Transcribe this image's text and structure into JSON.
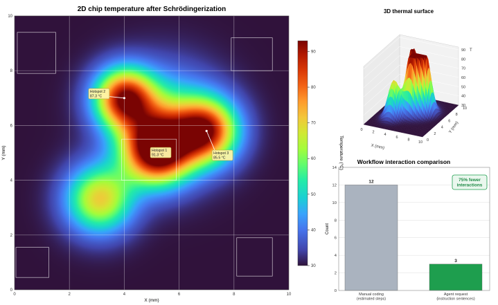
{
  "heatmap": {
    "title": "2D chip temperature after Schrödingerization",
    "xlabel": "X (mm)",
    "ylabel": "Y (mm)",
    "xlim": [
      0,
      10
    ],
    "ylim": [
      0,
      10
    ],
    "ticks": [
      "0",
      "2",
      "4",
      "6",
      "8",
      "10"
    ],
    "colorbar": {
      "label": "Temperature (°C)",
      "range": [
        30,
        93
      ],
      "ticks": [
        "30",
        "40",
        "50",
        "60",
        "70",
        "80",
        "90"
      ]
    },
    "hotspots": [
      {
        "name": "Hotspot 1",
        "x": 5.2,
        "y": 5.1,
        "value": "91.3 °C",
        "lx": 4.95,
        "ly": 5.2,
        "dir": "right"
      },
      {
        "name": "Hotspot 2",
        "x": 4.0,
        "y": 7.0,
        "value": "87.3 °C",
        "lx": 2.7,
        "ly": 7.35,
        "dir": "left"
      },
      {
        "name": "Hotspot 3",
        "x": 7.0,
        "y": 5.8,
        "value": "85.5 °C",
        "lx": 7.2,
        "ly": 5.1,
        "dir": "right"
      }
    ],
    "sources": [
      {
        "x": 5.2,
        "y": 5.1,
        "amp": 61,
        "sigma": 0.85
      },
      {
        "x": 4.0,
        "y": 7.0,
        "amp": 55,
        "sigma": 0.75
      },
      {
        "x": 7.0,
        "y": 5.8,
        "amp": 52,
        "sigma": 0.8
      },
      {
        "x": 3.1,
        "y": 3.3,
        "amp": 40,
        "sigma": 0.85
      },
      {
        "x": 5.5,
        "y": 6.1,
        "amp": 26,
        "sigma": 1.3
      }
    ],
    "boxes": [
      {
        "x0": 0.1,
        "y0": 7.9,
        "x1": 1.5,
        "y1": 9.4
      },
      {
        "x0": 7.9,
        "y0": 8.0,
        "x1": 9.4,
        "y1": 9.2
      },
      {
        "x0": 0.05,
        "y0": 0.45,
        "x1": 1.25,
        "y1": 1.55
      },
      {
        "x0": 8.1,
        "y0": 0.5,
        "x1": 9.4,
        "y1": 1.9
      },
      {
        "x0": 3.9,
        "y0": 4.0,
        "x1": 5.9,
        "y1": 5.5
      }
    ]
  },
  "surface": {
    "title": "3D thermal surface",
    "xlabel": "X (mm)",
    "ylabel": "Y (mm)",
    "zlabel": "T",
    "xticks": [
      "0",
      "2",
      "4",
      "6",
      "8",
      "10"
    ],
    "yticks": [
      "0",
      "2",
      "4",
      "6",
      "8",
      "10"
    ],
    "zticks": [
      "30",
      "40",
      "50",
      "60",
      "70",
      "80",
      "90"
    ]
  },
  "chart_data": {
    "type": "bar",
    "title": "Workflow interaction comparison",
    "categories": [
      "Manual coding\n(estimated steps)",
      "Agent request\n(instruction sentences)"
    ],
    "values": [
      12,
      3
    ],
    "ylabel": "Count",
    "ylim": [
      0,
      14
    ],
    "yticks": [
      "0",
      "2",
      "4",
      "6",
      "8",
      "10",
      "12",
      "14"
    ],
    "colors": [
      "#aab3bf",
      "#1e9e4e"
    ],
    "annotation": "75% fewer\ninteractions"
  }
}
